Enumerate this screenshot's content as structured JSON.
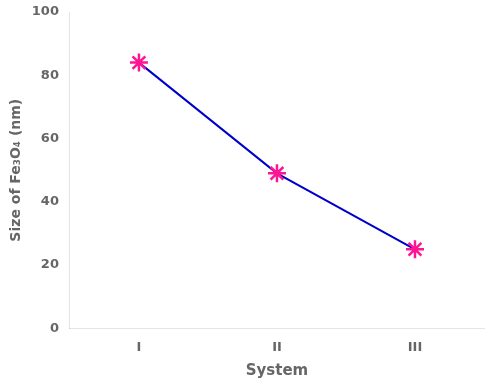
{
  "chart_data": {
    "type": "line",
    "xlabel": "System",
    "ylabel": "Size of Fe₃O₄ (nm)",
    "categories": [
      "I",
      "II",
      "III"
    ],
    "values": [
      84,
      49,
      25
    ],
    "color": "#0000cc",
    "colors": [
      "#ff1493",
      "#ff1493",
      "#ff1493"
    ],
    "marker": "star",
    "ylim": [
      0,
      100
    ],
    "yticks": [
      0,
      20,
      40,
      60,
      80,
      100
    ],
    "grid": false
  }
}
